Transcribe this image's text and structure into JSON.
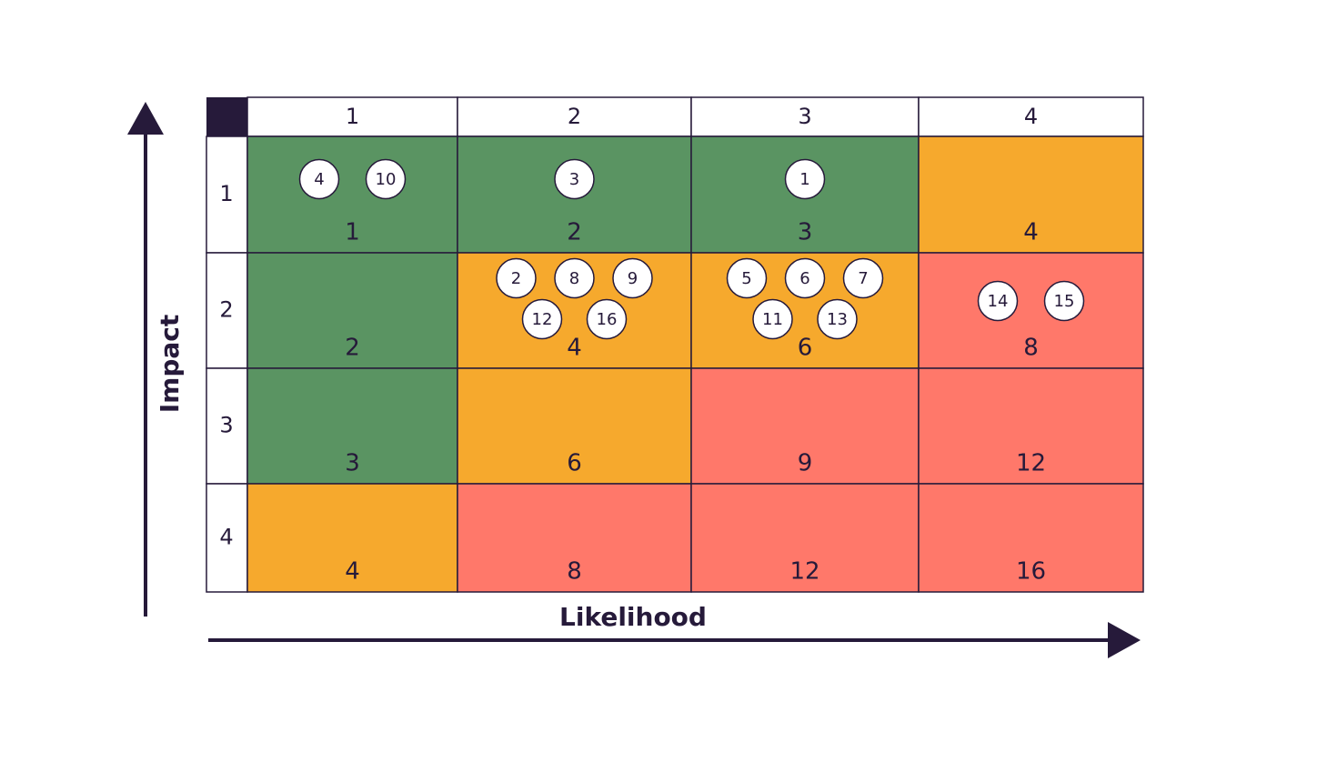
{
  "x_axis_label": "Likelihood",
  "y_axis_label": "Impact",
  "columns": [
    1,
    2,
    3,
    4
  ],
  "rows": [
    1,
    2,
    3,
    4
  ],
  "cells": [
    [
      {
        "score": 1,
        "color": "#5a9462",
        "markers": [
          4,
          10
        ]
      },
      {
        "score": 2,
        "color": "#5a9462",
        "markers": [
          3
        ]
      },
      {
        "score": 3,
        "color": "#5a9462",
        "markers": [
          1
        ]
      },
      {
        "score": 4,
        "color": "#f6a92d",
        "markers": []
      }
    ],
    [
      {
        "score": 2,
        "color": "#5a9462",
        "markers": []
      },
      {
        "score": 4,
        "color": "#f6a92d",
        "markers": [
          2,
          8,
          9,
          12,
          16
        ]
      },
      {
        "score": 6,
        "color": "#f6a92d",
        "markers": [
          5,
          6,
          7,
          11,
          13
        ]
      },
      {
        "score": 8,
        "color": "#ff786a",
        "markers": [
          14,
          15
        ]
      }
    ],
    [
      {
        "score": 3,
        "color": "#5a9462",
        "markers": []
      },
      {
        "score": 6,
        "color": "#f6a92d",
        "markers": []
      },
      {
        "score": 9,
        "color": "#ff786a",
        "markers": []
      },
      {
        "score": 12,
        "color": "#ff786a",
        "markers": []
      }
    ],
    [
      {
        "score": 4,
        "color": "#f6a92d",
        "markers": []
      },
      {
        "score": 8,
        "color": "#ff786a",
        "markers": []
      },
      {
        "score": 12,
        "color": "#ff786a",
        "markers": []
      },
      {
        "score": 16,
        "color": "#ff786a",
        "markers": []
      }
    ]
  ]
}
